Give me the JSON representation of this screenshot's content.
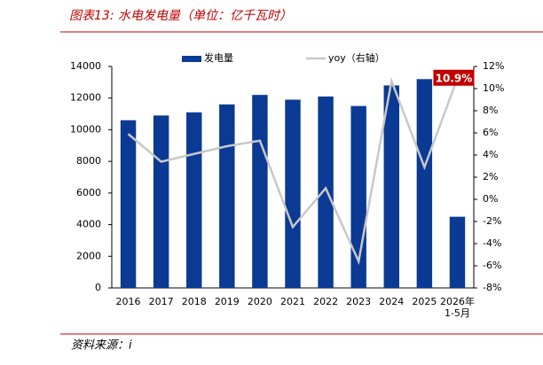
{
  "chart_data": {
    "type": "bar",
    "title": "图表13: 水电发电量（单位：亿千瓦时）",
    "source": "资料来源：i",
    "categories": [
      "2016",
      "2017",
      "2018",
      "2019",
      "2020",
      "2021",
      "2022",
      "2023",
      "2024",
      "2025",
      "2026年\n1-5月"
    ],
    "series": [
      {
        "name": "发电量",
        "color": "#0a3a94",
        "type": "bar",
        "values": [
          10600,
          10900,
          11100,
          11600,
          12200,
          11900,
          12100,
          11500,
          12800,
          13200,
          4500
        ]
      },
      {
        "name": "yoy（右轴）",
        "color": "#c8c8c8",
        "type": "line",
        "axis": "y2",
        "values": [
          5.9,
          3.4,
          4.1,
          4.8,
          5.3,
          -2.5,
          1.0,
          -5.6,
          10.7,
          2.9,
          10.9
        ],
        "value_labels": [
          null,
          null,
          null,
          null,
          null,
          null,
          null,
          null,
          null,
          null,
          "10.9%"
        ]
      }
    ],
    "ylim": [
      0,
      14000
    ],
    "yticks": [
      0,
      2000,
      4000,
      6000,
      8000,
      10000,
      12000,
      14000
    ],
    "y2lim": [
      -8,
      12
    ],
    "y2ticks": [
      {
        "value": -8,
        "label": "-8%"
      },
      {
        "value": -6,
        "label": "-6%"
      },
      {
        "value": -4,
        "label": "-4%"
      },
      {
        "value": -2,
        "label": "-2%"
      },
      {
        "value": 0,
        "label": "0%"
      },
      {
        "value": 2,
        "label": "2%"
      },
      {
        "value": 4,
        "label": "4%"
      },
      {
        "value": 6,
        "label": "6%"
      },
      {
        "value": 8,
        "label": "8%"
      },
      {
        "value": 10,
        "label": "10%"
      },
      {
        "value": 12,
        "label": "12%"
      }
    ]
  }
}
